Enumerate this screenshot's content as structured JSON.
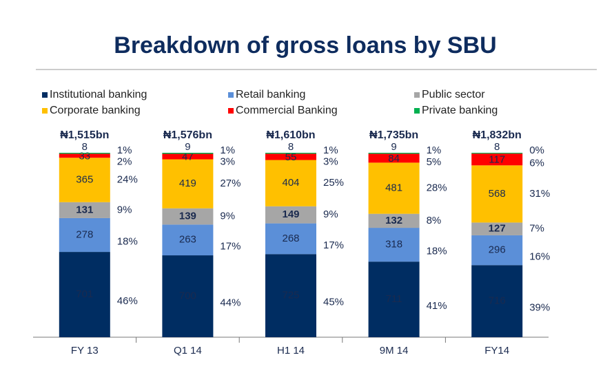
{
  "chart_data": {
    "type": "stacked_bar_100",
    "title": "Breakdown of gross loans by SBU",
    "categories": [
      "FY 13",
      "Q1 14",
      "H1 14",
      "9M 14",
      "FY14"
    ],
    "totals": [
      "₦1,515bn",
      "₦1,576bn",
      "₦1,610bn",
      "₦1,735bn",
      "₦1,832bn"
    ],
    "series": [
      {
        "name": "Institutional banking",
        "color": "#002d62",
        "values": [
          701,
          700,
          725,
          711,
          716
        ],
        "percent_labels": [
          "46%",
          "44%",
          "45%",
          "41%",
          "39%"
        ]
      },
      {
        "name": "Retail banking",
        "color": "#5b8fd8",
        "values": [
          278,
          263,
          268,
          318,
          296
        ],
        "percent_labels": [
          "18%",
          "17%",
          "17%",
          "18%",
          "16%"
        ]
      },
      {
        "name": "Public sector",
        "color": "#a6a6a6",
        "values": [
          131,
          139,
          149,
          132,
          127
        ],
        "percent_labels": [
          "9%",
          "9%",
          "9%",
          "8%",
          "7%"
        ]
      },
      {
        "name": "Corporate banking",
        "color": "#ffc000",
        "values": [
          365,
          419,
          404,
          481,
          568
        ],
        "percent_labels": [
          "24%",
          "27%",
          "25%",
          "28%",
          "31%"
        ]
      },
      {
        "name": "Commercial Banking",
        "color": "#ff0000",
        "values": [
          33,
          47,
          55,
          84,
          117
        ],
        "percent_labels": [
          "2%",
          "3%",
          "3%",
          "5%",
          "6%"
        ]
      },
      {
        "name": "Private banking",
        "color": "#00b050",
        "values": [
          8,
          9,
          8,
          9,
          8
        ],
        "percent_labels": [
          "1%",
          "1%",
          "1%",
          "1%",
          "0%"
        ]
      }
    ]
  }
}
